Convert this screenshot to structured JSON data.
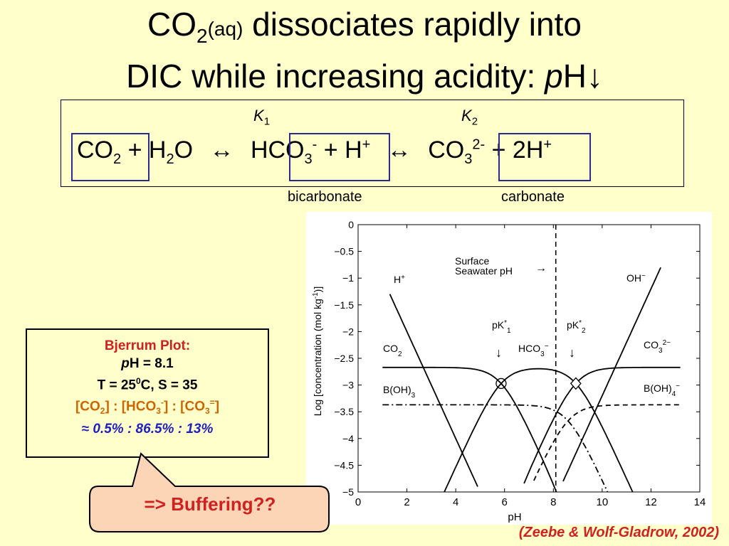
{
  "title": {
    "line1_a": "CO",
    "line1_sub": "2",
    "line1_aq": "(aq)",
    "line1_b": " dissociates rapidly into",
    "line2_a": "DIC while increasing acidity: ",
    "line2_p": "p",
    "line2_b": "H",
    "line2_arrow": "↓"
  },
  "equation": {
    "k1": "K",
    "k1_sub": "1",
    "k2": "K",
    "k2_sub": "2",
    "co2": "CO",
    "co2_sub": "2",
    "plus1": "+",
    "h2o_a": "H",
    "h2o_sub": "2",
    "h2o_b": "O",
    "arrow1": "↔",
    "hco3": "HCO",
    "hco3_sub": "3",
    "hco3_sup": "-",
    "plus2": "+",
    "h": "H",
    "h_sup": "+",
    "arrow2": "↔",
    "co3": "CO",
    "co3_sub": "3",
    "co3_sup": "2-",
    "plus3": "+",
    "h2": "2H",
    "h2_sup": "+",
    "bicarbonate": "bicarbonate",
    "carbonate": "carbonate"
  },
  "chart_data": {
    "type": "line",
    "xlabel": "pH",
    "ylabel": "Log [concentration (mol kg",
    "ylabel_sup": "-1",
    "ylabel_end": ")]",
    "xlim": [
      0,
      14
    ],
    "ylim": [
      -5,
      0
    ],
    "x_ticks": [
      0,
      2,
      4,
      6,
      8,
      10,
      12,
      14
    ],
    "y_ticks": [
      0,
      -0.5,
      -1,
      -1.5,
      -2,
      -2.5,
      -3,
      -3.5,
      -4,
      -4.5,
      -5
    ],
    "y_tick_labels": [
      "0",
      "−0.5",
      "−1",
      "−1.5",
      "−2",
      "−2.5",
      "−3",
      "−3.5",
      "−4",
      "−4.5",
      "−5"
    ],
    "surface_pH": 8.1,
    "pK1": 5.86,
    "pK2": 8.92,
    "log_DIC": -2.67,
    "log_BT": -3.37,
    "pKB": 8.6,
    "pKw": 13.2,
    "annotations": {
      "surface": "Surface",
      "seawater": "Seawater pH",
      "arrow": "→",
      "hplus": "H",
      "hplus_sup": "+",
      "ohminus": "OH",
      "ohminus_sup": "−",
      "co2": "CO",
      "co2_sub": "2",
      "hco3": "HCO",
      "hco3_sub": "3",
      "hco3_sup": "−",
      "co3": "CO",
      "co3_sub": "3",
      "co3_sup": "2−",
      "boh3": "B(OH)",
      "boh3_sub": "3",
      "boh4": "B(OH)",
      "boh4_sub": "4",
      "boh4_sup": "−",
      "pk1": "pK",
      "pk1_sup": "*",
      "pk1_sub": "1",
      "pk2": "pK",
      "pk2_sup": "*",
      "pk2_sub": "2",
      "down": "↓"
    },
    "series": [
      {
        "name": "CO2",
        "style": "solid"
      },
      {
        "name": "HCO3-",
        "style": "solid"
      },
      {
        "name": "CO3 2-",
        "style": "solid"
      },
      {
        "name": "B(OH)3",
        "style": "dash-dot"
      },
      {
        "name": "B(OH)4-",
        "style": "dashed"
      },
      {
        "name": "H+",
        "style": "solid"
      },
      {
        "name": "OH-",
        "style": "solid"
      }
    ]
  },
  "bjerrum": {
    "heading": "Bjerrum Plot:",
    "ph_p": "p",
    "ph_rest": "H = 8.1",
    "t_a": "T = 25",
    "t_sup": "0",
    "t_b": "C, S = 35",
    "ratio_a": "[CO",
    "ratio_sub1": "2",
    "ratio_b": "] : [HCO",
    "ratio_sub2": "3",
    "ratio_sup2": "-",
    "ratio_c": "] : [CO",
    "ratio_sub3": "3",
    "ratio_sup3": "=",
    "ratio_d": "]",
    "values": "≈ 0.5% : 86.5% : 13%"
  },
  "callout": {
    "text": "=> Buffering??"
  },
  "citation": "(Zeebe & Wolf-Gladrow, 2002)"
}
